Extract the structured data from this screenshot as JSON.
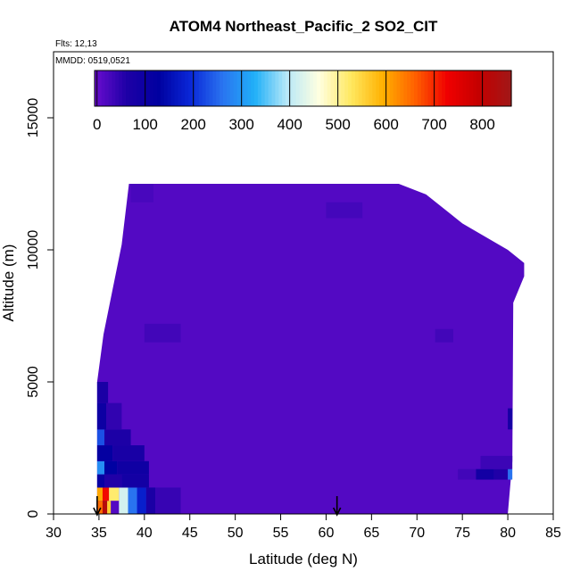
{
  "chart_data": {
    "type": "heatmap",
    "title": "ATOM4 Northeast_Pacific_2 SO2_CIT",
    "flights_label": "Flts: 12,13",
    "date_label": "MMDD: 0519,0521",
    "xlabel": "Latitude (deg N)",
    "ylabel": "Altitude (m)",
    "xlim": [
      30,
      85
    ],
    "ylim": [
      0,
      17500
    ],
    "x_ticks": [
      "30",
      "35",
      "40",
      "45",
      "50",
      "55",
      "60",
      "65",
      "70",
      "75",
      "80",
      "85"
    ],
    "y_ticks": [
      "0",
      "5000",
      "10000",
      "15000"
    ],
    "colorbar": {
      "range": [
        -5,
        860
      ],
      "ticks": [
        "0",
        "100",
        "200",
        "300",
        "400",
        "500",
        "600",
        "700",
        "800"
      ],
      "colors": [
        "#6a0dcf",
        "#1e00a6",
        "#0000a0",
        "#0a28d8",
        "#2a74f0",
        "#20b0f8",
        "#b8e8f8",
        "#ffffe0",
        "#ffe860",
        "#ffb000",
        "#ff6000",
        "#f00000",
        "#c40000",
        "#a01818"
      ]
    },
    "profile_markers_lat": [
      34.8,
      61.2
    ],
    "field": {
      "background_value": 15,
      "envelope": [
        {
          "lat": 34.8,
          "top": 5000
        },
        {
          "lat": 35.5,
          "top": 6800
        },
        {
          "lat": 36.5,
          "top": 8500
        },
        {
          "lat": 37.5,
          "top": 10200
        },
        {
          "lat": 38.3,
          "top": 12500
        },
        {
          "lat": 68.0,
          "top": 12500
        },
        {
          "lat": 71.0,
          "top": 12100
        },
        {
          "lat": 75.0,
          "top": 11000
        },
        {
          "lat": 80.0,
          "top": 10000
        },
        {
          "lat": 81.8,
          "top": 9500
        },
        {
          "lat": 81.8,
          "top": 9000
        },
        {
          "lat": 80.6,
          "top": 8000
        },
        {
          "lat": 80.5,
          "top": 2000
        },
        {
          "lat": 80.0,
          "top": 0
        }
      ],
      "blocks": [
        {
          "lat0": 34.8,
          "lat1": 35.4,
          "alt0": 0,
          "alt1": 500,
          "v": 650
        },
        {
          "lat0": 35.4,
          "lat1": 35.9,
          "alt0": 0,
          "alt1": 500,
          "v": 820
        },
        {
          "lat0": 35.9,
          "lat1": 36.3,
          "alt0": 0,
          "alt1": 500,
          "v": 560
        },
        {
          "lat0": 34.8,
          "lat1": 35.4,
          "alt0": 500,
          "alt1": 1000,
          "v": 600
        },
        {
          "lat0": 35.4,
          "lat1": 36.1,
          "alt0": 500,
          "alt1": 1000,
          "v": 720
        },
        {
          "lat0": 36.1,
          "lat1": 37.2,
          "alt0": 500,
          "alt1": 1000,
          "v": 520
        },
        {
          "lat0": 37.2,
          "lat1": 38.2,
          "alt0": 0,
          "alt1": 1000,
          "v": 420
        },
        {
          "lat0": 38.2,
          "lat1": 39.2,
          "alt0": 0,
          "alt1": 1000,
          "v": 260
        },
        {
          "lat0": 39.2,
          "lat1": 40.2,
          "alt0": 0,
          "alt1": 1000,
          "v": 180
        },
        {
          "lat0": 40.2,
          "lat1": 41.2,
          "alt0": 0,
          "alt1": 1000,
          "v": 70
        },
        {
          "lat0": 34.8,
          "lat1": 35.6,
          "alt0": 1000,
          "alt1": 1500,
          "v": 110
        },
        {
          "lat0": 35.6,
          "lat1": 37.5,
          "alt0": 1000,
          "alt1": 1500,
          "v": 60
        },
        {
          "lat0": 37.5,
          "lat1": 40.5,
          "alt0": 1000,
          "alt1": 1500,
          "v": 85
        },
        {
          "lat0": 34.8,
          "lat1": 35.6,
          "alt0": 1500,
          "alt1": 2000,
          "v": 290
        },
        {
          "lat0": 35.6,
          "lat1": 37.0,
          "alt0": 1500,
          "alt1": 2000,
          "v": 130
        },
        {
          "lat0": 37.0,
          "lat1": 40.5,
          "alt0": 1500,
          "alt1": 2000,
          "v": 95
        },
        {
          "lat0": 34.8,
          "lat1": 36.5,
          "alt0": 2000,
          "alt1": 2600,
          "v": 120
        },
        {
          "lat0": 36.5,
          "lat1": 40.0,
          "alt0": 2000,
          "alt1": 2600,
          "v": 75
        },
        {
          "lat0": 34.8,
          "lat1": 35.6,
          "alt0": 2600,
          "alt1": 3200,
          "v": 230
        },
        {
          "lat0": 35.6,
          "lat1": 38.5,
          "alt0": 2600,
          "alt1": 3200,
          "v": 65
        },
        {
          "lat0": 34.8,
          "lat1": 35.8,
          "alt0": 3200,
          "alt1": 4200,
          "v": 100
        },
        {
          "lat0": 35.8,
          "lat1": 37.5,
          "alt0": 3200,
          "alt1": 4200,
          "v": 45
        },
        {
          "lat0": 34.8,
          "lat1": 36.0,
          "alt0": 4200,
          "alt1": 5000,
          "v": 70
        },
        {
          "lat0": 41.2,
          "lat1": 44.0,
          "alt0": 0,
          "alt1": 1000,
          "v": 40
        },
        {
          "lat0": 74.5,
          "lat1": 76.5,
          "alt0": 1300,
          "alt1": 1700,
          "v": 30
        },
        {
          "lat0": 76.5,
          "lat1": 78.5,
          "alt0": 1300,
          "alt1": 1700,
          "v": 85
        },
        {
          "lat0": 78.5,
          "lat1": 80.0,
          "alt0": 1300,
          "alt1": 1700,
          "v": 60
        },
        {
          "lat0": 80.0,
          "lat1": 80.5,
          "alt0": 1300,
          "alt1": 1700,
          "v": 260
        },
        {
          "lat0": 77.0,
          "lat1": 80.5,
          "alt0": 1700,
          "alt1": 2200,
          "v": 35
        },
        {
          "lat0": 80.0,
          "lat1": 80.5,
          "alt0": 3200,
          "alt1": 4000,
          "v": 80
        },
        {
          "lat0": 72.0,
          "lat1": 74.0,
          "alt0": 6500,
          "alt1": 7000,
          "v": 30
        },
        {
          "lat0": 40.0,
          "lat1": 44.0,
          "alt0": 6500,
          "alt1": 7200,
          "v": 30
        },
        {
          "lat0": 60.0,
          "lat1": 64.0,
          "alt0": 11200,
          "alt1": 11800,
          "v": 28
        },
        {
          "lat0": 38.5,
          "lat1": 41.0,
          "alt0": 11800,
          "alt1": 12500,
          "v": 25
        }
      ]
    }
  }
}
